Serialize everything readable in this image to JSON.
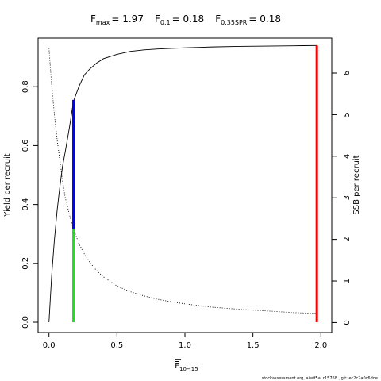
{
  "chart_data": {
    "type": "line",
    "title": {
      "fmax": {
        "main": "F",
        "sub": "max",
        "value": "= 1.97"
      },
      "f01": {
        "main": "F",
        "sub": "0.1",
        "value": "= 0.18"
      },
      "f035": {
        "main": "F",
        "sub": "0.35SPR",
        "value": "= 0.18"
      }
    },
    "xlabel": {
      "main": "F",
      "sub": "10−15"
    },
    "ylabel_left": "Yield per recruit",
    "ylabel_right": "SSB per recruit",
    "xlim": [
      -0.08,
      2.08
    ],
    "ylim_left": [
      -0.035,
      0.965
    ],
    "ylim_right": [
      -0.24,
      6.84
    ],
    "x_ticks": [
      0,
      0.5,
      1,
      1.5,
      2
    ],
    "x_tick_labels": [
      "0.0",
      "0.5",
      "1.0",
      "1.5",
      "2.0"
    ],
    "y_left_ticks": [
      0,
      0.2,
      0.4,
      0.6,
      0.8
    ],
    "y_left_tick_labels": [
      "0.0",
      "0.2",
      "0.4",
      "0.6",
      "0.8"
    ],
    "y_right_ticks": [
      0,
      1,
      2,
      3,
      4,
      5,
      6
    ],
    "y_right_tick_labels": [
      "0",
      "1",
      "2",
      "3",
      "4",
      "5",
      "6"
    ],
    "series": [
      {
        "style": "solid",
        "axis": "left",
        "x": [
          0,
          0.02,
          0.04,
          0.06,
          0.08,
          0.1,
          0.12,
          0.15,
          0.18,
          0.22,
          0.26,
          0.3,
          0.35,
          0.4,
          0.5,
          0.6,
          0.7,
          0.8,
          0.9,
          1.0,
          1.2,
          1.4,
          1.6,
          1.8,
          1.97
        ],
        "y": [
          0,
          0.16,
          0.28,
          0.38,
          0.46,
          0.53,
          0.58,
          0.66,
          0.75,
          0.8,
          0.84,
          0.86,
          0.88,
          0.895,
          0.91,
          0.92,
          0.925,
          0.928,
          0.93,
          0.932,
          0.935,
          0.937,
          0.938,
          0.939,
          0.94
        ]
      },
      {
        "style": "dotted",
        "axis": "right",
        "x": [
          0,
          0.02,
          0.04,
          0.06,
          0.08,
          0.1,
          0.12,
          0.15,
          0.18,
          0.22,
          0.26,
          0.3,
          0.35,
          0.4,
          0.5,
          0.6,
          0.7,
          0.8,
          0.9,
          1.0,
          1.2,
          1.4,
          1.6,
          1.8,
          1.97
        ],
        "y": [
          6.6,
          5.7,
          5.0,
          4.4,
          3.9,
          3.4,
          3.0,
          2.6,
          2.25,
          1.9,
          1.65,
          1.45,
          1.25,
          1.1,
          0.88,
          0.74,
          0.64,
          0.56,
          0.5,
          0.45,
          0.37,
          0.32,
          0.28,
          0.24,
          0.22
        ]
      }
    ],
    "reference_lines": [
      {
        "x": 0.18,
        "y_from": 0,
        "y_to": 0.318,
        "color": "#22dd22"
      },
      {
        "x": 0.18,
        "y_from": 0.318,
        "y_to": 0.755,
        "color": "#0000ff"
      },
      {
        "x": 1.97,
        "y_from": 0,
        "y_to": 0.94,
        "color": "#ff0000"
      }
    ],
    "footer": "stockassessment.org, aiwff5a, r15768 , git: ec2c2a0c6dde"
  }
}
